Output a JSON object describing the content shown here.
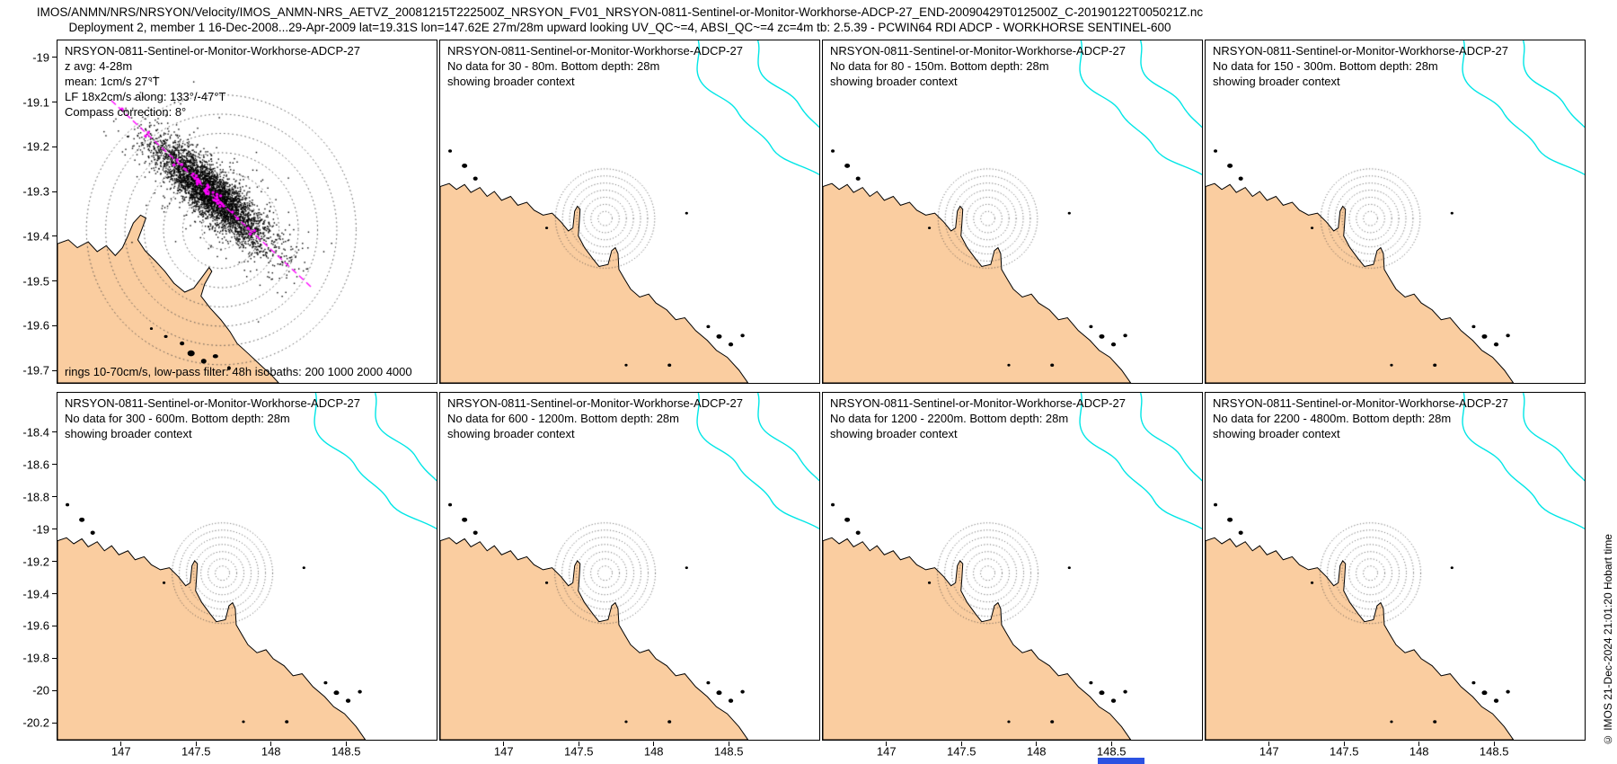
{
  "header": {
    "line1": "IMOS/ANMN/NRS/NRSYON/Velocity/IMOS_ANMN-NRS_AETVZ_20081215T222500Z_NRSYON_FV01_NRSYON-0811-Sentinel-or-Monitor-Workhorse-ADCP-27_END-20090429T012500Z_C-20190122T005021Z.nc",
    "line2": "Deployment 2, member 1 16-Dec-2008...29-Apr-2009 lat=19.31S lon=147.62E 27m/28m upward looking UV_QC~=4, ABSI_QC~=4 zc=4m tb: 2.5.39 - PCWIN64 RDI ADCP - WORKHORSE SENTINEL-600"
  },
  "watermark": "© IMOS 21-Dec-2024 21:01:20 Hobart time",
  "panels": [
    {
      "title": "NRSYON-0811-Sentinel-or-Monitor-Workhorse-ADCP-27",
      "info_lines": [
        "z avg: 4-28m",
        "mean: 1cm/s 27°T",
        "LF 18x2cm/s along: 133°/-47°T",
        "Compass correction: 8°"
      ],
      "footer": "rings 10-70cm/s, low-pass filter: 48h isobaths: 200 1000 2000 4000"
    },
    {
      "title": "NRSYON-0811-Sentinel-or-Monitor-Workhorse-ADCP-27",
      "line2": "No data for 30 - 80m. Bottom depth: 28m",
      "line3": "showing broader context"
    },
    {
      "title": "NRSYON-0811-Sentinel-or-Monitor-Workhorse-ADCP-27",
      "line2": "No data for 80 - 150m. Bottom depth: 28m",
      "line3": "showing broader context"
    },
    {
      "title": "NRSYON-0811-Sentinel-or-Monitor-Workhorse-ADCP-27",
      "line2": "No data for 150 - 300m. Bottom depth: 28m",
      "line3": "showing broader context"
    },
    {
      "title": "NRSYON-0811-Sentinel-or-Monitor-Workhorse-ADCP-27",
      "line2": "No data for 300 - 600m. Bottom depth: 28m",
      "line3": "showing broader context"
    },
    {
      "title": "NRSYON-0811-Sentinel-or-Monitor-Workhorse-ADCP-27",
      "line2": "No data for 600 - 1200m. Bottom depth: 28m",
      "line3": "showing broader context"
    },
    {
      "title": "NRSYON-0811-Sentinel-or-Monitor-Workhorse-ADCP-27",
      "line2": "No data for 1200 - 2200m. Bottom depth: 28m",
      "line3": "showing broader context"
    },
    {
      "title": "NRSYON-0811-Sentinel-or-Monitor-Workhorse-ADCP-27",
      "line2": "No data for 2200 - 4800m. Bottom depth: 28m",
      "line3": "showing broader context"
    }
  ],
  "axes": {
    "zoom_lat_ticks": [
      "-19",
      "-19.1",
      "-19.2",
      "-19.3",
      "-19.4",
      "-19.5",
      "-19.6",
      "-19.7"
    ],
    "broad_lat_ticks": [
      "-18.4",
      "-18.6",
      "-18.8",
      "-19",
      "-19.2",
      "-19.4",
      "-19.6",
      "-19.8",
      "-20",
      "-20.2"
    ],
    "lon_ticks": [
      "147",
      "147.5",
      "148",
      "148.5"
    ]
  },
  "colors": {
    "land": "#FACDA0",
    "isobath": "#00E6E6",
    "scatter": "#000000",
    "principal_axis": "#FF00FF",
    "rings": "#444444"
  },
  "chart_data": {
    "type": "scatter",
    "description": "Depth-averaged ADCP horizontal velocity scatter (black dots) plotted over a coastal map at the NRSYON mooring; dotted concentric rings mark current speed in cm/s; magenta line/dots show low-pass-filtered principal axis. Seven companion subplots for deeper depth bins contain no data and show broader map context.",
    "mooring": {
      "site": "NRSYON",
      "lat": "19.31S",
      "lon": "147.62E",
      "depths": "27m/28m",
      "orientation": "upward looking"
    },
    "deployment": "Deployment 2, member 1, 16-Dec-2008...29-Apr-2009",
    "instrument": "RDI ADCP - WORKHORSE SENTINEL-600",
    "qc": "UV_QC~=4, ABSI_QC~=4 zc=4m",
    "toolbox": "tb: 2.5.39 - PCWIN64",
    "panel1": {
      "z_avg_m": "4-28",
      "mean_current": "1cm/s 27°T",
      "lf_ellipse_cms": [
        18,
        2
      ],
      "principal_axis_degT": [
        133,
        -47
      ],
      "compass_correction_deg": 8,
      "speed_rings_cms": [
        10,
        20,
        30,
        40,
        50,
        60,
        70
      ],
      "lowpass_filter_h": 48,
      "isobaths_m": [
        200,
        1000,
        2000,
        4000
      ],
      "lat_range": [
        -19.73,
        -18.96
      ]
    },
    "context_panels": {
      "depth_bins_m": [
        "30 - 80",
        "80 - 150",
        "150 - 300",
        "300 - 600",
        "600 - 1200",
        "1200 - 2200",
        "2200 - 4800"
      ],
      "bottom_depth_m": 28,
      "status": "No data",
      "lat_range": [
        -20.31,
        -18.15
      ],
      "lon_range": [
        146.57,
        149.11
      ]
    },
    "lon_ticks": [
      147,
      147.5,
      148,
      148.5
    ]
  }
}
